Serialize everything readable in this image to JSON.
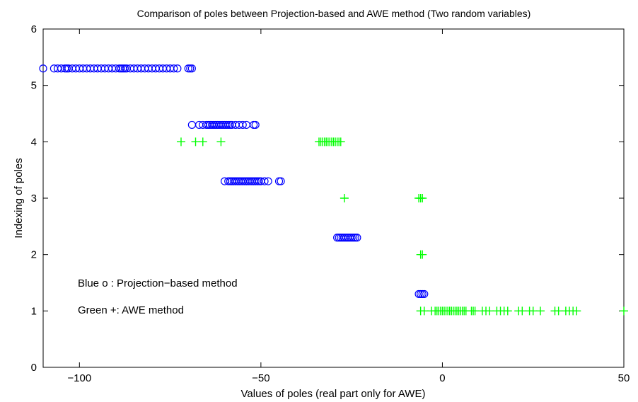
{
  "chart_data": {
    "type": "scatter",
    "title": "Comparison of poles between Projection-based and AWE method (Two random variables)",
    "xlabel": "Values of poles (real part only for AWE)",
    "ylabel": "Indexing of poles",
    "xlim": [
      -110,
      50
    ],
    "ylim": [
      0,
      6
    ],
    "xticks": [
      -100,
      -50,
      0,
      50
    ],
    "xtick_labels": [
      "−100",
      "−50",
      "0",
      "50"
    ],
    "yticks": [
      0,
      1,
      2,
      3,
      4,
      5,
      6
    ],
    "ytick_labels": [
      "0",
      "1",
      "2",
      "3",
      "4",
      "5",
      "6"
    ],
    "grid": false,
    "series": [
      {
        "marker": "o",
        "color": "#0000ff",
        "points": [
          [
            -110,
            5.3
          ],
          [
            -107,
            5.3
          ],
          [
            -106,
            5.3
          ],
          [
            -105,
            5.3
          ],
          [
            -104,
            5.3
          ],
          [
            -103.5,
            5.3
          ],
          [
            -103,
            5.3
          ],
          [
            -102,
            5.3
          ],
          [
            -101,
            5.3
          ],
          [
            -100,
            5.3
          ],
          [
            -99,
            5.3
          ],
          [
            -98,
            5.3
          ],
          [
            -97,
            5.3
          ],
          [
            -96,
            5.3
          ],
          [
            -95,
            5.3
          ],
          [
            -94,
            5.3
          ],
          [
            -93,
            5.3
          ],
          [
            -92,
            5.3
          ],
          [
            -91,
            5.3
          ],
          [
            -90,
            5.3
          ],
          [
            -89,
            5.3
          ],
          [
            -88.5,
            5.3
          ],
          [
            -88,
            5.3
          ],
          [
            -87.5,
            5.3
          ],
          [
            -87,
            5.3
          ],
          [
            -86,
            5.3
          ],
          [
            -85,
            5.3
          ],
          [
            -84,
            5.3
          ],
          [
            -83,
            5.3
          ],
          [
            -82,
            5.3
          ],
          [
            -81,
            5.3
          ],
          [
            -80,
            5.3
          ],
          [
            -79,
            5.3
          ],
          [
            -78,
            5.3
          ],
          [
            -77,
            5.3
          ],
          [
            -76,
            5.3
          ],
          [
            -75,
            5.3
          ],
          [
            -74,
            5.3
          ],
          [
            -73,
            5.3
          ],
          [
            -70,
            5.3
          ],
          [
            -69.5,
            5.3
          ],
          [
            -69,
            5.3
          ],
          [
            -69,
            4.3
          ],
          [
            -67,
            4.3
          ],
          [
            -66,
            4.3
          ],
          [
            -65,
            4.3
          ],
          [
            -64.5,
            4.3
          ],
          [
            -64,
            4.3
          ],
          [
            -63.5,
            4.3
          ],
          [
            -63,
            4.3
          ],
          [
            -62.5,
            4.3
          ],
          [
            -62,
            4.3
          ],
          [
            -61.5,
            4.3
          ],
          [
            -61,
            4.3
          ],
          [
            -60.5,
            4.3
          ],
          [
            -60,
            4.3
          ],
          [
            -59.5,
            4.3
          ],
          [
            -59,
            4.3
          ],
          [
            -58.5,
            4.3
          ],
          [
            -58,
            4.3
          ],
          [
            -57,
            4.3
          ],
          [
            -56,
            4.3
          ],
          [
            -55,
            4.3
          ],
          [
            -54,
            4.3
          ],
          [
            -52,
            4.3
          ],
          [
            -51.5,
            4.3
          ],
          [
            -60,
            3.3
          ],
          [
            -59,
            3.3
          ],
          [
            -58.5,
            3.3
          ],
          [
            -58,
            3.3
          ],
          [
            -57.5,
            3.3
          ],
          [
            -57,
            3.3
          ],
          [
            -56.5,
            3.3
          ],
          [
            -56,
            3.3
          ],
          [
            -55.5,
            3.3
          ],
          [
            -55,
            3.3
          ],
          [
            -54.5,
            3.3
          ],
          [
            -54,
            3.3
          ],
          [
            -53.5,
            3.3
          ],
          [
            -53,
            3.3
          ],
          [
            -52.5,
            3.3
          ],
          [
            -52,
            3.3
          ],
          [
            -51.5,
            3.3
          ],
          [
            -51,
            3.3
          ],
          [
            -50.5,
            3.3
          ],
          [
            -50,
            3.3
          ],
          [
            -49,
            3.3
          ],
          [
            -48,
            3.3
          ],
          [
            -45,
            3.3
          ],
          [
            -44.5,
            3.3
          ],
          [
            -29,
            2.3
          ],
          [
            -28.5,
            2.3
          ],
          [
            -28,
            2.3
          ],
          [
            -27.5,
            2.3
          ],
          [
            -27,
            2.3
          ],
          [
            -26.5,
            2.3
          ],
          [
            -26,
            2.3
          ],
          [
            -25.5,
            2.3
          ],
          [
            -25,
            2.3
          ],
          [
            -24.5,
            2.3
          ],
          [
            -24,
            2.3
          ],
          [
            -23.5,
            2.3
          ],
          [
            -6.5,
            1.3
          ],
          [
            -6,
            1.3
          ],
          [
            -5.5,
            1.3
          ],
          [
            -5,
            1.3
          ]
        ]
      },
      {
        "marker": "+",
        "color": "#00ff00",
        "points": [
          [
            -72,
            4
          ],
          [
            -68,
            4
          ],
          [
            -66,
            4
          ],
          [
            -61,
            4
          ],
          [
            -34,
            4
          ],
          [
            -33.5,
            4
          ],
          [
            -33,
            4
          ],
          [
            -32.5,
            4
          ],
          [
            -32,
            4
          ],
          [
            -31.5,
            4
          ],
          [
            -31,
            4
          ],
          [
            -30.5,
            4
          ],
          [
            -30,
            4
          ],
          [
            -29.5,
            4
          ],
          [
            -29,
            4
          ],
          [
            -28.5,
            4
          ],
          [
            -28,
            4
          ],
          [
            -27,
            3
          ],
          [
            -6.5,
            3
          ],
          [
            -6,
            3
          ],
          [
            -5.5,
            3
          ],
          [
            -6,
            2
          ],
          [
            -5.5,
            2
          ],
          [
            -6,
            1
          ],
          [
            -5,
            1
          ],
          [
            -3,
            1
          ],
          [
            -2,
            1
          ],
          [
            -1.5,
            1
          ],
          [
            -1,
            1
          ],
          [
            -0.5,
            1
          ],
          [
            0,
            1
          ],
          [
            0.5,
            1
          ],
          [
            1,
            1
          ],
          [
            1.5,
            1
          ],
          [
            2,
            1
          ],
          [
            2.5,
            1
          ],
          [
            3,
            1
          ],
          [
            3.5,
            1
          ],
          [
            4,
            1
          ],
          [
            4.5,
            1
          ],
          [
            5,
            1
          ],
          [
            5.5,
            1
          ],
          [
            6,
            1
          ],
          [
            6.5,
            1
          ],
          [
            8,
            1
          ],
          [
            8.5,
            1
          ],
          [
            9,
            1
          ],
          [
            11,
            1
          ],
          [
            12,
            1
          ],
          [
            13,
            1
          ],
          [
            15,
            1
          ],
          [
            16,
            1
          ],
          [
            17,
            1
          ],
          [
            18,
            1
          ],
          [
            21,
            1
          ],
          [
            22,
            1
          ],
          [
            24,
            1
          ],
          [
            25,
            1
          ],
          [
            27,
            1
          ],
          [
            31,
            1
          ],
          [
            32,
            1
          ],
          [
            34,
            1
          ],
          [
            35,
            1
          ],
          [
            36,
            1
          ],
          [
            37,
            1
          ],
          [
            50,
            1
          ]
        ]
      }
    ],
    "annotations": [
      {
        "text": "Blue o : Projection−based method",
        "x": -100,
        "y": 1.5
      },
      {
        "text": "Green +: AWE method",
        "x": -100,
        "y": 1.0
      }
    ]
  }
}
